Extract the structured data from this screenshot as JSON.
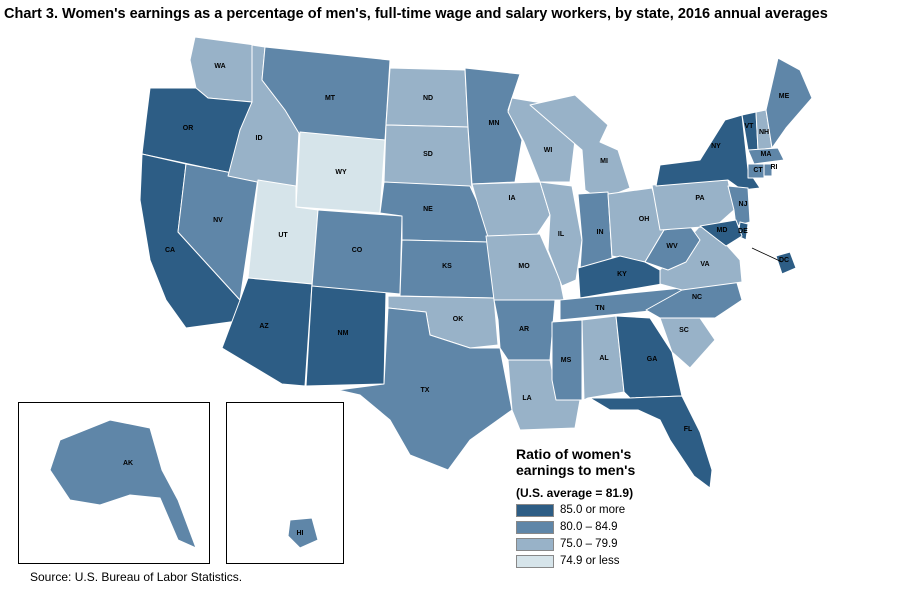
{
  "title": "Chart 3. Women's earnings as a percentage of men's, full-time wage and salary workers, by state, 2016 annual averages",
  "source": "Source: U.S. Bureau of Labor Statistics.",
  "legend": {
    "title_line1": "Ratio of women's",
    "title_line2": "earnings to men's",
    "subtitle": "(U.S. average = 81.9)",
    "items": [
      {
        "label": "85.0 or more",
        "color": "#2d5d85"
      },
      {
        "label": "80.0 – 84.9",
        "color": "#5f86a8"
      },
      {
        "label": "75.0 – 79.9",
        "color": "#98b2c8"
      },
      {
        "label": "74.9 or less",
        "color": "#d6e4ea"
      }
    ]
  },
  "states": {
    "WA": {
      "label": "WA",
      "class": 2
    },
    "OR": {
      "label": "OR",
      "class": 0
    },
    "CA": {
      "label": "CA",
      "class": 0
    },
    "NV": {
      "label": "NV",
      "class": 1
    },
    "ID": {
      "label": "ID",
      "class": 2
    },
    "MT": {
      "label": "MT",
      "class": 1
    },
    "WY": {
      "label": "WY",
      "class": 3
    },
    "UT": {
      "label": "UT",
      "class": 3
    },
    "AZ": {
      "label": "AZ",
      "class": 0
    },
    "NM": {
      "label": "NM",
      "class": 0
    },
    "CO": {
      "label": "CO",
      "class": 1
    },
    "ND": {
      "label": "ND",
      "class": 2
    },
    "SD": {
      "label": "SD",
      "class": 2
    },
    "NE": {
      "label": "NE",
      "class": 1
    },
    "KS": {
      "label": "KS",
      "class": 1
    },
    "OK": {
      "label": "OK",
      "class": 2
    },
    "TX": {
      "label": "TX",
      "class": 1
    },
    "MN": {
      "label": "MN",
      "class": 1
    },
    "IA": {
      "label": "IA",
      "class": 2
    },
    "MO": {
      "label": "MO",
      "class": 2
    },
    "AR": {
      "label": "AR",
      "class": 1
    },
    "LA": {
      "label": "LA",
      "class": 2
    },
    "WI": {
      "label": "WI",
      "class": 2
    },
    "IL": {
      "label": "IL",
      "class": 2
    },
    "MI": {
      "label": "MI",
      "class": 2
    },
    "IN": {
      "label": "IN",
      "class": 1
    },
    "OH": {
      "label": "OH",
      "class": 2
    },
    "KY": {
      "label": "KY",
      "class": 0
    },
    "TN": {
      "label": "TN",
      "class": 1
    },
    "MS": {
      "label": "MS",
      "class": 1
    },
    "AL": {
      "label": "AL",
      "class": 2
    },
    "GA": {
      "label": "GA",
      "class": 0
    },
    "FL": {
      "label": "FL",
      "class": 0
    },
    "SC": {
      "label": "SC",
      "class": 2
    },
    "NC": {
      "label": "NC",
      "class": 1
    },
    "VA": {
      "label": "VA",
      "class": 2
    },
    "WV": {
      "label": "WV",
      "class": 1
    },
    "PA": {
      "label": "PA",
      "class": 2
    },
    "NY": {
      "label": "NY",
      "class": 0
    },
    "NJ": {
      "label": "NJ",
      "class": 1
    },
    "DE": {
      "label": "DE",
      "class": 0
    },
    "MD": {
      "label": "MD",
      "class": 0
    },
    "DC": {
      "label": "DC",
      "class": 0
    },
    "VT": {
      "label": "VT",
      "class": 0
    },
    "NH": {
      "label": "NH",
      "class": 2
    },
    "ME": {
      "label": "ME",
      "class": 1
    },
    "MA": {
      "label": "MA",
      "class": 1
    },
    "CT": {
      "label": "CT",
      "class": 1
    },
    "RI": {
      "label": "RI",
      "class": 1
    },
    "AK": {
      "label": "AK",
      "class": 1
    },
    "HI": {
      "label": "HI",
      "class": 1
    }
  }
}
